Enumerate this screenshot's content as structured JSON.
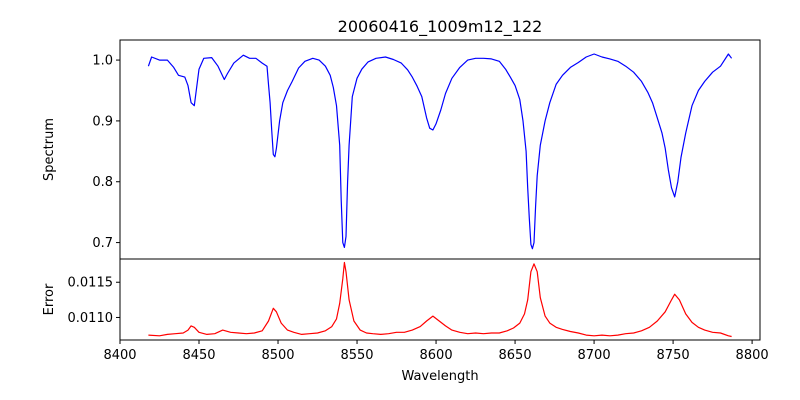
{
  "chart_data": {
    "type": "line",
    "title": "20060416_1009m12_122",
    "xlabel": "Wavelength",
    "xlim": [
      8400,
      8805
    ],
    "x_ticks": [
      "8400",
      "8450",
      "8500",
      "8550",
      "8600",
      "8650",
      "8700",
      "8750",
      "8800"
    ],
    "x_range": [
      8418,
      8787
    ],
    "grid": false,
    "panels": [
      {
        "name": "spectrum",
        "ylabel": "Spectrum",
        "ylim": [
          0.673,
          1.033
        ],
        "y_ticks": [
          "0.7",
          "0.8",
          "0.9",
          "1.0"
        ],
        "series": [
          {
            "color": "#0000ff",
            "points": [
              [
                8418,
                0.99
              ],
              [
                8420,
                1.005
              ],
              [
                8425,
                1.0
              ],
              [
                8430,
                1.0
              ],
              [
                8434,
                0.988
              ],
              [
                8437,
                0.975
              ],
              [
                8441,
                0.972
              ],
              [
                8443,
                0.958
              ],
              [
                8445,
                0.93
              ],
              [
                8447,
                0.925
              ],
              [
                8450,
                0.985
              ],
              [
                8453,
                1.003
              ],
              [
                8458,
                1.004
              ],
              [
                8462,
                0.99
              ],
              [
                8466,
                0.968
              ],
              [
                8468,
                0.978
              ],
              [
                8472,
                0.995
              ],
              [
                8478,
                1.008
              ],
              [
                8482,
                1.003
              ],
              [
                8486,
                1.003
              ],
              [
                8490,
                0.995
              ],
              [
                8493,
                0.99
              ],
              [
                8494,
                0.96
              ],
              [
                8495,
                0.93
              ],
              [
                8496,
                0.885
              ],
              [
                8497,
                0.845
              ],
              [
                8498,
                0.841
              ],
              [
                8499,
                0.855
              ],
              [
                8501,
                0.9
              ],
              [
                8503,
                0.93
              ],
              [
                8506,
                0.95
              ],
              [
                8509,
                0.965
              ],
              [
                8513,
                0.987
              ],
              [
                8517,
                0.998
              ],
              [
                8522,
                1.003
              ],
              [
                8526,
                1.0
              ],
              [
                8530,
                0.99
              ],
              [
                8533,
                0.975
              ],
              [
                8535,
                0.955
              ],
              [
                8537,
                0.925
              ],
              [
                8539,
                0.86
              ],
              [
                8540,
                0.77
              ],
              [
                8541,
                0.7
              ],
              [
                8542,
                0.692
              ],
              [
                8543,
                0.71
              ],
              [
                8544,
                0.8
              ],
              [
                8545,
                0.86
              ],
              [
                8547,
                0.94
              ],
              [
                8550,
                0.97
              ],
              [
                8553,
                0.985
              ],
              [
                8557,
                0.997
              ],
              [
                8562,
                1.003
              ],
              [
                8568,
                1.005
              ],
              [
                8573,
                1.001
              ],
              [
                8578,
                0.995
              ],
              [
                8582,
                0.984
              ],
              [
                8585,
                0.972
              ],
              [
                8588,
                0.957
              ],
              [
                8591,
                0.94
              ],
              [
                8594,
                0.905
              ],
              [
                8596,
                0.888
              ],
              [
                8598,
                0.885
              ],
              [
                8600,
                0.895
              ],
              [
                8603,
                0.918
              ],
              [
                8606,
                0.945
              ],
              [
                8610,
                0.97
              ],
              [
                8615,
                0.988
              ],
              [
                8620,
                1.0
              ],
              [
                8625,
                1.003
              ],
              [
                8630,
                1.003
              ],
              [
                8635,
                1.002
              ],
              [
                8640,
                0.998
              ],
              [
                8644,
                0.985
              ],
              [
                8647,
                0.972
              ],
              [
                8650,
                0.958
              ],
              [
                8653,
                0.935
              ],
              [
                8655,
                0.9
              ],
              [
                8657,
                0.85
              ],
              [
                8658,
                0.79
              ],
              [
                8659,
                0.74
              ],
              [
                8660,
                0.697
              ],
              [
                8661,
                0.69
              ],
              [
                8662,
                0.7
              ],
              [
                8663,
                0.76
              ],
              [
                8664,
                0.81
              ],
              [
                8666,
                0.86
              ],
              [
                8669,
                0.9
              ],
              [
                8672,
                0.93
              ],
              [
                8676,
                0.96
              ],
              [
                8680,
                0.975
              ],
              [
                8685,
                0.988
              ],
              [
                8690,
                0.996
              ],
              [
                8695,
                1.005
              ],
              [
                8700,
                1.01
              ],
              [
                8705,
                1.005
              ],
              [
                8710,
                1.002
              ],
              [
                8715,
                0.998
              ],
              [
                8720,
                0.99
              ],
              [
                8725,
                0.98
              ],
              [
                8730,
                0.965
              ],
              [
                8734,
                0.947
              ],
              [
                8737,
                0.93
              ],
              [
                8740,
                0.905
              ],
              [
                8743,
                0.88
              ],
              [
                8745,
                0.855
              ],
              [
                8747,
                0.82
              ],
              [
                8749,
                0.79
              ],
              [
                8751,
                0.775
              ],
              [
                8753,
                0.8
              ],
              [
                8755,
                0.84
              ],
              [
                8758,
                0.88
              ],
              [
                8762,
                0.925
              ],
              [
                8766,
                0.95
              ],
              [
                8770,
                0.965
              ],
              [
                8775,
                0.98
              ],
              [
                8780,
                0.99
              ],
              [
                8785,
                1.01
              ],
              [
                8787,
                1.003
              ]
            ]
          }
        ]
      },
      {
        "name": "error",
        "ylabel": "Error",
        "ylim": [
          0.01068,
          0.01183
        ],
        "y_ticks": [
          "0.0110",
          "0.0115"
        ],
        "series": [
          {
            "color": "#ff0000",
            "points": [
              [
                8418,
                0.01075
              ],
              [
                8425,
                0.01074
              ],
              [
                8430,
                0.01076
              ],
              [
                8435,
                0.01077
              ],
              [
                8440,
                0.01078
              ],
              [
                8443,
                0.01082
              ],
              [
                8445,
                0.01088
              ],
              [
                8447,
                0.01086
              ],
              [
                8450,
                0.01079
              ],
              [
                8455,
                0.01076
              ],
              [
                8460,
                0.01077
              ],
              [
                8465,
                0.01082
              ],
              [
                8470,
                0.01079
              ],
              [
                8475,
                0.01078
              ],
              [
                8480,
                0.01077
              ],
              [
                8485,
                0.01078
              ],
              [
                8490,
                0.01081
              ],
              [
                8494,
                0.01095
              ],
              [
                8497,
                0.01113
              ],
              [
                8499,
                0.01108
              ],
              [
                8502,
                0.01092
              ],
              [
                8506,
                0.01082
              ],
              [
                8510,
                0.01079
              ],
              [
                8515,
                0.01076
              ],
              [
                8520,
                0.01077
              ],
              [
                8525,
                0.01078
              ],
              [
                8530,
                0.01081
              ],
              [
                8534,
                0.01087
              ],
              [
                8537,
                0.01098
              ],
              [
                8539,
                0.0112
              ],
              [
                8541,
                0.01155
              ],
              [
                8542,
                0.01178
              ],
              [
                8543,
                0.01165
              ],
              [
                8545,
                0.01125
              ],
              [
                8548,
                0.01095
              ],
              [
                8552,
                0.01082
              ],
              [
                8556,
                0.01078
              ],
              [
                8560,
                0.01077
              ],
              [
                8565,
                0.01076
              ],
              [
                8570,
                0.01077
              ],
              [
                8575,
                0.01079
              ],
              [
                8580,
                0.01079
              ],
              [
                8585,
                0.01082
              ],
              [
                8590,
                0.01087
              ],
              [
                8594,
                0.01095
              ],
              [
                8598,
                0.01102
              ],
              [
                8602,
                0.01095
              ],
              [
                8606,
                0.01088
              ],
              [
                8610,
                0.01082
              ],
              [
                8615,
                0.01079
              ],
              [
                8620,
                0.01077
              ],
              [
                8625,
                0.01078
              ],
              [
                8630,
                0.01077
              ],
              [
                8635,
                0.01078
              ],
              [
                8640,
                0.01078
              ],
              [
                8645,
                0.01081
              ],
              [
                8649,
                0.01085
              ],
              [
                8653,
                0.01092
              ],
              [
                8656,
                0.01105
              ],
              [
                8658,
                0.01125
              ],
              [
                8660,
                0.01165
              ],
              [
                8662,
                0.01176
              ],
              [
                8664,
                0.01165
              ],
              [
                8666,
                0.01128
              ],
              [
                8669,
                0.01102
              ],
              [
                8672,
                0.01092
              ],
              [
                8676,
                0.01086
              ],
              [
                8680,
                0.01083
              ],
              [
                8685,
                0.0108
              ],
              [
                8690,
                0.01078
              ],
              [
                8695,
                0.01075
              ],
              [
                8700,
                0.01074
              ],
              [
                8705,
                0.01075
              ],
              [
                8710,
                0.01074
              ],
              [
                8715,
                0.01075
              ],
              [
                8720,
                0.01077
              ],
              [
                8725,
                0.01078
              ],
              [
                8730,
                0.01081
              ],
              [
                8735,
                0.01086
              ],
              [
                8740,
                0.01095
              ],
              [
                8745,
                0.01108
              ],
              [
                8749,
                0.01125
              ],
              [
                8751,
                0.01133
              ],
              [
                8754,
                0.01125
              ],
              [
                8758,
                0.01105
              ],
              [
                8762,
                0.01093
              ],
              [
                8766,
                0.01086
              ],
              [
                8770,
                0.01082
              ],
              [
                8775,
                0.01079
              ],
              [
                8780,
                0.01078
              ],
              [
                8785,
                0.01074
              ],
              [
                8787,
                0.01073
              ]
            ]
          }
        ]
      }
    ]
  }
}
